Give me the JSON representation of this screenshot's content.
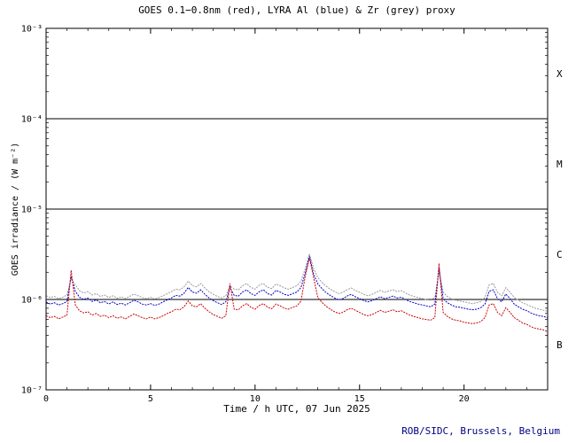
{
  "chart": {
    "title": "GOES 0.1−0.8nm (red), LYRA Al (blue) & Zr (grey) proxy",
    "xlabel": "Time / h UTC, 07 Jun 2025",
    "ylabel": "GOES irradiance / (W m⁻²)",
    "credit": "ROB/SIDC, Brussels, Belgium",
    "colors": {
      "goes_red": "#cc0000",
      "lyra_al_blue": "#0000cc",
      "lyra_zr_grey": "#999999",
      "axis": "#000000",
      "credit_text": "#000080"
    },
    "y_axis": {
      "scale": "log",
      "max_exp": -3,
      "min_exp": -7,
      "tick_exponents": [
        -3,
        -4,
        -5,
        -6,
        -7
      ],
      "tick_labels": [
        "10⁻³",
        "10⁻⁴",
        "10⁻⁵",
        "10⁻⁶",
        "10⁻⁷"
      ]
    },
    "x_axis": {
      "min": 0,
      "max": 24,
      "major_ticks": [
        0,
        5,
        10,
        15,
        20
      ],
      "major_tick_labels": [
        "0",
        "5",
        "10",
        "15",
        "20"
      ],
      "minor_tick_step": 1
    },
    "threshold_lines_exp": [
      -4,
      -5,
      -6
    ],
    "flare_class_labels": [
      {
        "label": "X",
        "band_top_exp": -3,
        "band_bottom_exp": -4
      },
      {
        "label": "M",
        "band_top_exp": -4,
        "band_bottom_exp": -5
      },
      {
        "label": "C",
        "band_top_exp": -5,
        "band_bottom_exp": -6
      },
      {
        "label": "B",
        "band_top_exp": -6,
        "band_bottom_exp": -7
      }
    ]
  },
  "chart_data": {
    "type": "line",
    "x_unit": "hours UTC, 07 Jun 2025",
    "x_start": 0,
    "x_step": 0.2,
    "y_unit": "W m⁻²",
    "value_scale": 1e-06,
    "ylim_exp": [
      -7,
      -3
    ],
    "series": [
      {
        "name": "LYRA Zr proxy",
        "color_key": "lyra_zr_grey",
        "data_name": "lyra-zr-grey-line",
        "values": [
          1.1,
          1.05,
          1.08,
          1.02,
          1.06,
          1.12,
          1.7,
          1.45,
          1.25,
          1.18,
          1.22,
          1.12,
          1.16,
          1.08,
          1.12,
          1.05,
          1.1,
          1.03,
          1.07,
          1.02,
          1.08,
          1.15,
          1.1,
          1.05,
          1.02,
          1.06,
          1.01,
          1.05,
          1.1,
          1.16,
          1.22,
          1.3,
          1.28,
          1.38,
          1.6,
          1.42,
          1.38,
          1.5,
          1.34,
          1.22,
          1.14,
          1.08,
          1.04,
          1.1,
          1.4,
          1.3,
          1.28,
          1.42,
          1.5,
          1.36,
          1.3,
          1.44,
          1.5,
          1.36,
          1.32,
          1.48,
          1.42,
          1.34,
          1.3,
          1.36,
          1.42,
          1.6,
          2.2,
          3.2,
          2.2,
          1.75,
          1.55,
          1.4,
          1.3,
          1.22,
          1.16,
          1.2,
          1.28,
          1.34,
          1.26,
          1.2,
          1.14,
          1.1,
          1.14,
          1.2,
          1.26,
          1.2,
          1.24,
          1.28,
          1.22,
          1.25,
          1.18,
          1.12,
          1.08,
          1.05,
          1.02,
          1.0,
          0.98,
          1.05,
          2.0,
          1.2,
          1.08,
          1.02,
          0.98,
          0.96,
          0.94,
          0.92,
          0.9,
          0.92,
          0.95,
          1.05,
          1.45,
          1.5,
          1.2,
          1.1,
          1.35,
          1.2,
          1.05,
          0.98,
          0.92,
          0.88,
          0.84,
          0.8,
          0.78,
          0.76,
          0.74
        ]
      },
      {
        "name": "LYRA Al proxy",
        "color_key": "lyra_al_blue",
        "data_name": "lyra-al-blue-line",
        "values": [
          0.94,
          0.89,
          0.92,
          0.87,
          0.9,
          0.95,
          1.8,
          1.23,
          1.06,
          1.0,
          1.04,
          0.95,
          0.99,
          0.92,
          0.95,
          0.89,
          0.94,
          0.88,
          0.91,
          0.87,
          0.92,
          0.98,
          0.94,
          0.89,
          0.87,
          0.9,
          0.86,
          0.89,
          0.94,
          0.99,
          1.04,
          1.11,
          1.09,
          1.17,
          1.36,
          1.21,
          1.17,
          1.28,
          1.14,
          1.04,
          0.97,
          0.92,
          0.88,
          0.94,
          1.35,
          1.11,
          1.09,
          1.21,
          1.28,
          1.16,
          1.11,
          1.22,
          1.28,
          1.16,
          1.12,
          1.26,
          1.21,
          1.14,
          1.11,
          1.16,
          1.21,
          1.36,
          1.95,
          3.0,
          1.9,
          1.49,
          1.32,
          1.19,
          1.11,
          1.04,
          0.99,
          1.02,
          1.09,
          1.14,
          1.07,
          1.02,
          0.97,
          0.94,
          0.97,
          1.02,
          1.07,
          1.02,
          1.05,
          1.09,
          1.04,
          1.06,
          1.0,
          0.95,
          0.92,
          0.89,
          0.87,
          0.85,
          0.83,
          0.89,
          2.2,
          1.02,
          0.92,
          0.87,
          0.83,
          0.82,
          0.8,
          0.78,
          0.77,
          0.78,
          0.81,
          0.89,
          1.23,
          1.28,
          1.02,
          0.94,
          1.15,
          1.02,
          0.89,
          0.83,
          0.78,
          0.75,
          0.71,
          0.68,
          0.66,
          0.65,
          0.63
        ]
      },
      {
        "name": "GOES 0.1−0.8nm",
        "color_key": "goes_red",
        "data_name": "goes-red-line",
        "values": [
          0.66,
          0.63,
          0.65,
          0.61,
          0.64,
          0.67,
          2.1,
          0.87,
          0.75,
          0.71,
          0.73,
          0.67,
          0.7,
          0.65,
          0.67,
          0.63,
          0.66,
          0.62,
          0.64,
          0.61,
          0.65,
          0.69,
          0.66,
          0.63,
          0.61,
          0.64,
          0.61,
          0.63,
          0.66,
          0.7,
          0.73,
          0.78,
          0.77,
          0.83,
          0.96,
          0.85,
          0.83,
          0.9,
          0.8,
          0.73,
          0.68,
          0.65,
          0.62,
          0.66,
          1.5,
          0.78,
          0.77,
          0.85,
          0.9,
          0.82,
          0.78,
          0.86,
          0.9,
          0.82,
          0.79,
          0.89,
          0.85,
          0.8,
          0.78,
          0.82,
          0.85,
          0.96,
          1.8,
          2.9,
          1.75,
          1.05,
          0.93,
          0.84,
          0.78,
          0.73,
          0.7,
          0.72,
          0.77,
          0.8,
          0.76,
          0.72,
          0.68,
          0.66,
          0.68,
          0.72,
          0.76,
          0.72,
          0.74,
          0.77,
          0.73,
          0.75,
          0.71,
          0.67,
          0.65,
          0.63,
          0.61,
          0.6,
          0.59,
          0.63,
          2.5,
          0.72,
          0.65,
          0.61,
          0.59,
          0.58,
          0.56,
          0.55,
          0.54,
          0.55,
          0.57,
          0.63,
          0.87,
          0.9,
          0.72,
          0.66,
          0.81,
          0.72,
          0.63,
          0.59,
          0.55,
          0.53,
          0.5,
          0.48,
          0.47,
          0.46,
          0.44
        ]
      }
    ]
  }
}
